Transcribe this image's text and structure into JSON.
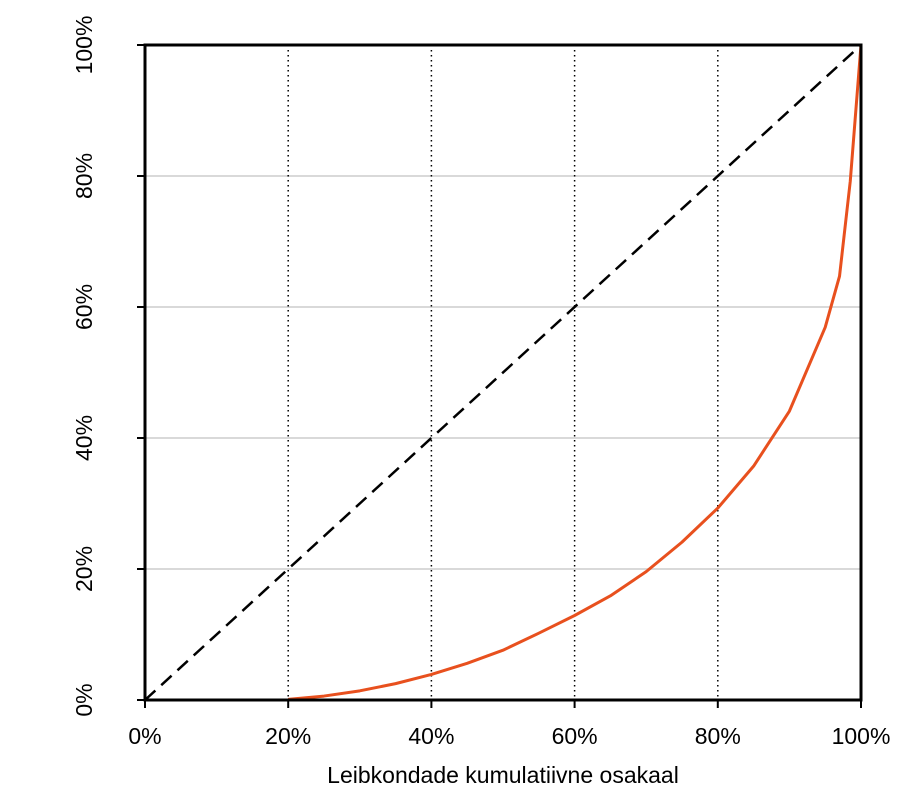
{
  "chart_data": {
    "type": "line",
    "title": "",
    "xlabel": "Leibkondade kumulatiivne osakaal",
    "ylabel": "",
    "xlim": [
      0,
      100
    ],
    "ylim": [
      0,
      100
    ],
    "x_ticks": [
      "0%",
      "20%",
      "40%",
      "60%",
      "80%",
      "100%"
    ],
    "y_ticks": [
      "0%",
      "20%",
      "40%",
      "60%",
      "80%",
      "100%"
    ],
    "x_tick_values": [
      0,
      20,
      40,
      60,
      80,
      100
    ],
    "y_tick_values": [
      0,
      20,
      40,
      60,
      80,
      100
    ],
    "grid": {
      "x": "dotted vertical lines at 20, 40, 60, 80",
      "y": "solid light gray horizontal lines at 20, 40, 60, 80"
    },
    "series": [
      {
        "style": "dashed",
        "color": "#000000",
        "x": [
          0,
          100
        ],
        "y": [
          0,
          100
        ]
      },
      {
        "style": "solid",
        "color": "#e8501e",
        "x": [
          20,
          25,
          30,
          35,
          40,
          45,
          50,
          55,
          60,
          65,
          70,
          75,
          80,
          85,
          90,
          95,
          97,
          98.5,
          100
        ],
        "y": [
          0.1,
          0.6,
          1.4,
          2.5,
          3.9,
          5.6,
          7.6,
          10.2,
          12.9,
          15.9,
          19.6,
          24.1,
          29.3,
          35.7,
          44.1,
          56.9,
          64.7,
          79.2,
          100
        ]
      }
    ]
  }
}
